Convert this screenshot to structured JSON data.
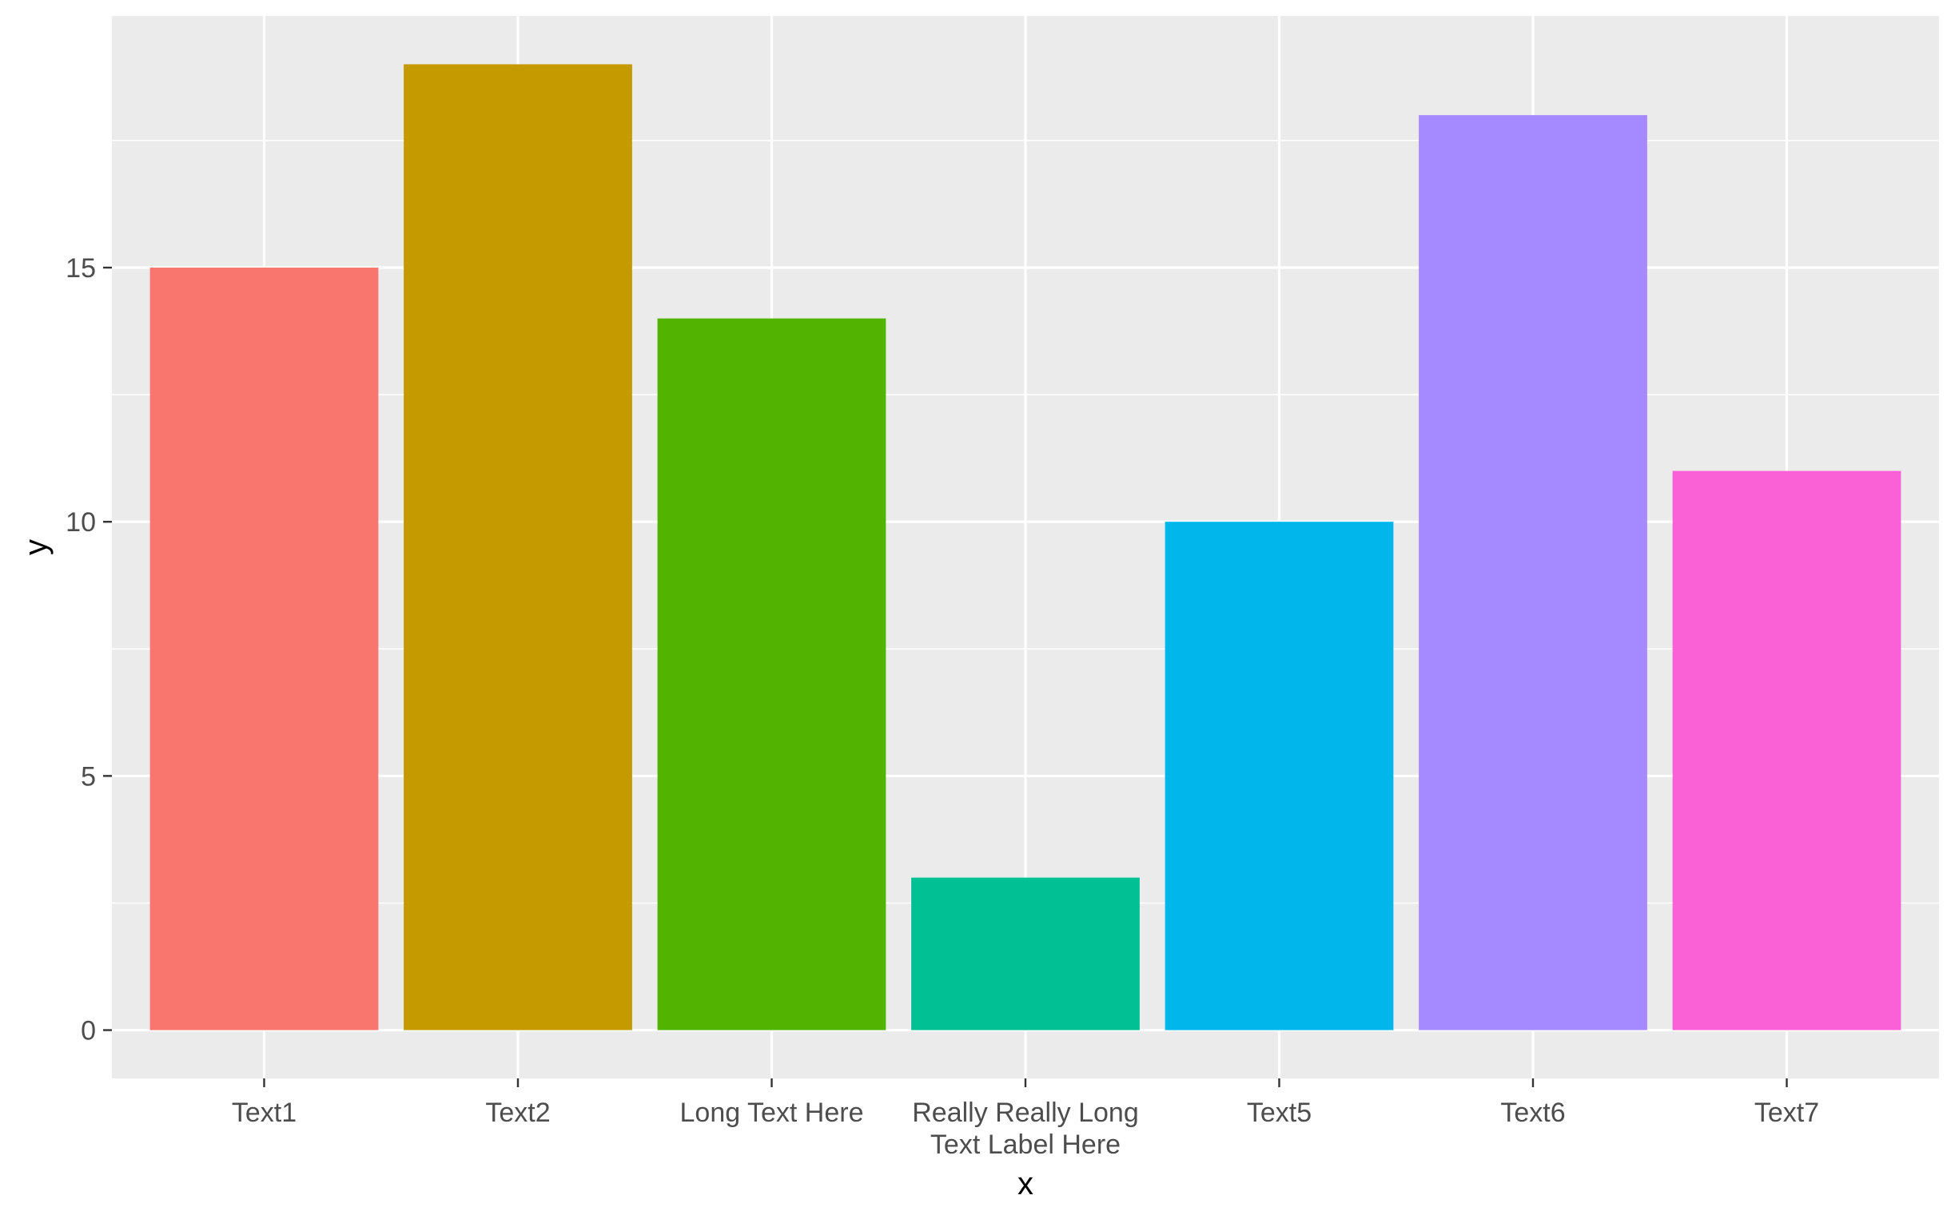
{
  "chart_data": {
    "type": "bar",
    "categories": [
      "Text1",
      "Text2",
      "Long Text Here",
      "Really Really Long\nText Label Here",
      "Text5",
      "Text6",
      "Text7"
    ],
    "values": [
      15,
      19,
      14,
      3,
      10,
      18,
      11
    ],
    "colors": [
      "#F8766D",
      "#C49A00",
      "#53B400",
      "#00C094",
      "#00B6EB",
      "#A58AFF",
      "#FB61D7"
    ],
    "xlabel": "x",
    "ylabel": "y",
    "ylim": [
      -0.95,
      19.95
    ],
    "yticks": [
      0,
      5,
      10,
      15
    ],
    "grid": true,
    "panel_background": "#EBEBEB",
    "grid_color": "#FFFFFF",
    "legend": "none"
  }
}
